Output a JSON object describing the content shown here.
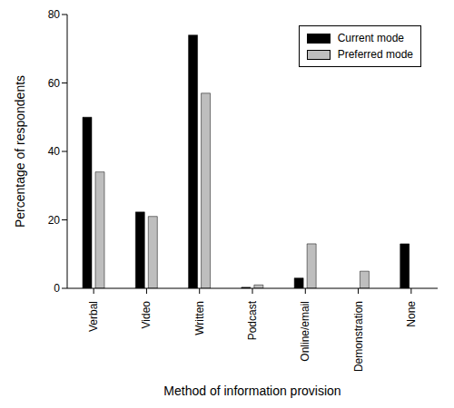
{
  "chart_data": {
    "type": "bar",
    "x_label": "Method of information provision",
    "y_label": "Percentage of respondents",
    "categories": [
      "Verbal",
      "Video",
      "Written",
      "Podcast",
      "Online/email",
      "Demonstration",
      "None"
    ],
    "series": [
      {
        "name": "Current mode",
        "color": "#000000",
        "values": [
          50,
          22.3,
          74,
          0.3,
          3,
          0,
          13
        ]
      },
      {
        "name": "Preferred mode",
        "color": "#bebebe",
        "values": [
          34,
          21,
          57,
          1,
          13,
          5,
          0
        ]
      }
    ],
    "ylim": [
      0,
      80
    ],
    "yticks": [
      0,
      20,
      40,
      60,
      80
    ],
    "grid": false,
    "legend": "upper right"
  }
}
